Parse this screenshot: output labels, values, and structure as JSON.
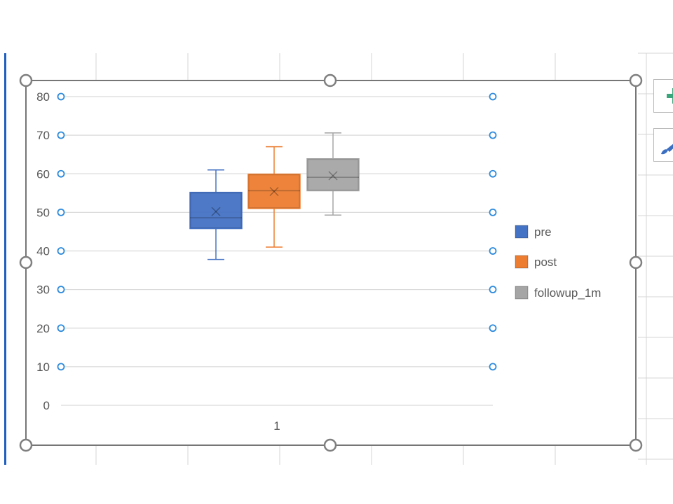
{
  "colors": {
    "pre": "#4472c4",
    "post": "#ed7d31",
    "followup_1m": "#a5a5a5",
    "gridline": "#d9d9d9",
    "handle_fill": "#ffffff",
    "handle_stroke": "#7f7f7f",
    "plot_handle": "#2e8bdc",
    "text": "#595959"
  },
  "toolbar": {
    "chart_elements_icon": "plus-icon",
    "chart_styles_icon": "paintbrush-icon"
  },
  "chart_data": {
    "type": "box",
    "title": "",
    "xlabel": "",
    "ylabel": "",
    "categories": [
      "1"
    ],
    "ylim": [
      0,
      80
    ],
    "yticks": [
      "0",
      "10",
      "20",
      "30",
      "40",
      "50",
      "60",
      "70",
      "80"
    ],
    "grid": true,
    "legend_position": "right",
    "series": [
      {
        "name": "pre",
        "min": 37.8,
        "q1": 45.8,
        "median": 48.6,
        "q3": 55.2,
        "max": 61.0,
        "mean": 50.2
      },
      {
        "name": "post",
        "min": 41.0,
        "q1": 51.0,
        "median": 55.6,
        "q3": 59.9,
        "max": 67.0,
        "mean": 55.4
      },
      {
        "name": "followup_1m",
        "min": 49.3,
        "q1": 55.6,
        "median": 59.1,
        "q3": 63.9,
        "max": 70.6,
        "mean": 59.5
      }
    ]
  }
}
